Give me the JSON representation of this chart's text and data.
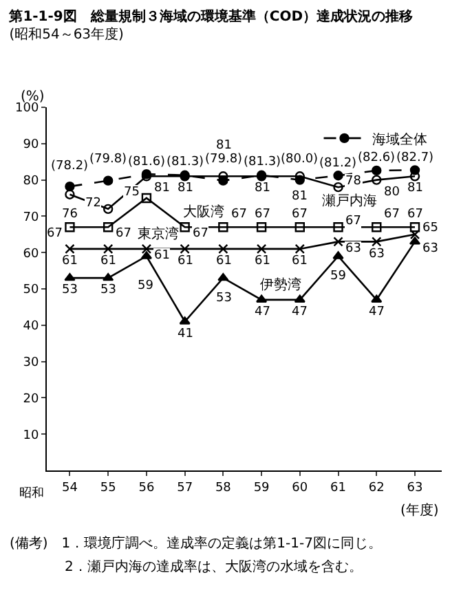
{
  "chart_data": {
    "type": "line",
    "title": "第1-1-9図　総量規制３海域の環境基準（COD）達成状況の推移",
    "subtitle": "(昭和54～63年度)",
    "xlabel": "(年度)",
    "ylabel": "(%)",
    "categories": [
      "54",
      "55",
      "56",
      "57",
      "58",
      "59",
      "60",
      "61",
      "62",
      "63"
    ],
    "ylim": [
      0,
      100
    ],
    "yticks": [
      10,
      20,
      30,
      40,
      50,
      60,
      70,
      80,
      90,
      100
    ],
    "legend": "top right",
    "data_labels": true,
    "series": [
      {
        "name": "海域全体",
        "color": "#000000",
        "marker": "circle",
        "line_style": "dashed",
        "values": [
          78.2,
          79.8,
          81.6,
          81.3,
          79.8,
          81.3,
          80.0,
          81.2,
          82.6,
          82.7
        ],
        "value_labels": [
          "(78.2)",
          "(79.8)",
          "(81.6)",
          "(81.3)",
          "(79.8)",
          "(81.3)",
          "(80.0)",
          "(81.2)",
          "(82.6)",
          "(82.7)"
        ]
      },
      {
        "name": "瀬戸内海",
        "color": "#000000",
        "marker": "circle-open",
        "line_style": "solid",
        "values": [
          76,
          72,
          81,
          81,
          81,
          81,
          81,
          78,
          80,
          81
        ],
        "value_labels": [
          "76",
          "72",
          "81",
          "81",
          "81",
          "81",
          "81",
          "78",
          "80",
          "81"
        ]
      },
      {
        "name": "大阪湾",
        "color": "#000000",
        "marker": "square-open",
        "line_style": "solid",
        "values": [
          67,
          67,
          75,
          67,
          67,
          67,
          67,
          67,
          67,
          67
        ],
        "value_labels": [
          "67",
          "67",
          "75",
          "67",
          "67",
          "67",
          "67",
          "67",
          "67",
          "67"
        ]
      },
      {
        "name": "東京湾",
        "color": "#000000",
        "marker": "cross",
        "line_style": "solid",
        "values": [
          61,
          61,
          61,
          61,
          61,
          61,
          61,
          63,
          63,
          65
        ],
        "value_labels": [
          "61",
          "61",
          "61",
          "61",
          "61",
          "61",
          "61",
          "63",
          "63",
          "65"
        ]
      },
      {
        "name": "伊勢湾",
        "color": "#000000",
        "marker": "triangle",
        "line_style": "solid",
        "values": [
          53,
          53,
          59,
          41,
          53,
          47,
          47,
          59,
          47,
          63
        ],
        "value_labels": [
          "53",
          "53",
          "59",
          "41",
          "53",
          "47",
          "47",
          "59",
          "47",
          "63"
        ]
      }
    ],
    "annotations": [
      "昭和",
      "(備考)　1．環境庁調べ。達成率の定義は第1-1-7図に同じ。",
      "　　　　2．瀬戸内海の達成率は、大阪湾の水域を含む。"
    ]
  }
}
